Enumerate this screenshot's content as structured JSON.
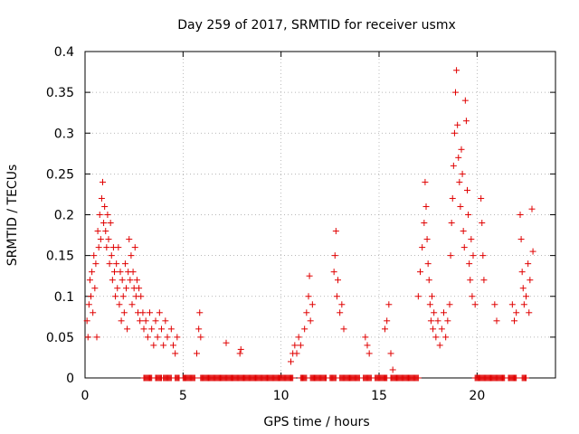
{
  "chart_data": {
    "type": "scatter",
    "title": "Day 259 of 2017, SRMTID for receiver usmx",
    "xlabel": "GPS time / hours",
    "ylabel": "SRMTID / TECUs",
    "xlim": [
      0,
      24
    ],
    "ylim": [
      0,
      0.4
    ],
    "xticks": [
      0,
      5,
      10,
      15,
      20
    ],
    "yticks": [
      0,
      0.05,
      0.1,
      0.15,
      0.2,
      0.25,
      0.3,
      0.35,
      0.4
    ],
    "xtick_labels": [
      "0",
      "5",
      "10",
      "15",
      "20"
    ],
    "ytick_labels": [
      "0",
      "0.05",
      "0.1",
      "0.15",
      "0.2",
      "0.25",
      "0.3",
      "0.35",
      "0.4"
    ],
    "grid": true,
    "marker": "+",
    "color": "#e00000",
    "series": [
      {
        "name": "SRMTID",
        "points": [
          [
            0.1,
            0.07
          ],
          [
            0.15,
            0.05
          ],
          [
            0.2,
            0.09
          ],
          [
            0.25,
            0.12
          ],
          [
            0.3,
            0.1
          ],
          [
            0.35,
            0.13
          ],
          [
            0.4,
            0.08
          ],
          [
            0.45,
            0.15
          ],
          [
            0.5,
            0.11
          ],
          [
            0.55,
            0.14
          ],
          [
            0.6,
            0.05
          ],
          [
            0.65,
            0.18
          ],
          [
            0.7,
            0.16
          ],
          [
            0.75,
            0.2
          ],
          [
            0.8,
            0.17
          ],
          [
            0.85,
            0.22
          ],
          [
            0.9,
            0.24
          ],
          [
            0.95,
            0.19
          ],
          [
            1.0,
            0.21
          ],
          [
            1.05,
            0.18
          ],
          [
            1.1,
            0.16
          ],
          [
            1.15,
            0.2
          ],
          [
            1.2,
            0.17
          ],
          [
            1.25,
            0.14
          ],
          [
            1.3,
            0.19
          ],
          [
            1.35,
            0.15
          ],
          [
            1.4,
            0.12
          ],
          [
            1.45,
            0.16
          ],
          [
            1.5,
            0.13
          ],
          [
            1.55,
            0.1
          ],
          [
            1.6,
            0.14
          ],
          [
            1.65,
            0.11
          ],
          [
            1.7,
            0.16
          ],
          [
            1.75,
            0.09
          ],
          [
            1.8,
            0.13
          ],
          [
            1.85,
            0.07
          ],
          [
            1.9,
            0.12
          ],
          [
            1.95,
            0.1
          ],
          [
            2.0,
            0.08
          ],
          [
            2.05,
            0.14
          ],
          [
            2.1,
            0.11
          ],
          [
            2.15,
            0.06
          ],
          [
            2.2,
            0.13
          ],
          [
            2.25,
            0.17
          ],
          [
            2.3,
            0.12
          ],
          [
            2.35,
            0.15
          ],
          [
            2.4,
            0.09
          ],
          [
            2.45,
            0.13
          ],
          [
            2.5,
            0.11
          ],
          [
            2.55,
            0.16
          ],
          [
            2.6,
            0.1
          ],
          [
            2.65,
            0.12
          ],
          [
            2.7,
            0.08
          ],
          [
            2.75,
            0.11
          ],
          [
            2.8,
            0.07
          ],
          [
            2.85,
            0.1
          ],
          [
            2.95,
            0.08
          ],
          [
            3.0,
            0.06
          ],
          [
            3.1,
            0.07
          ],
          [
            3.2,
            0.05
          ],
          [
            3.3,
            0.08
          ],
          [
            3.4,
            0.06
          ],
          [
            3.5,
            0.04
          ],
          [
            3.6,
            0.07
          ],
          [
            3.7,
            0.05
          ],
          [
            3.8,
            0.08
          ],
          [
            3.9,
            0.06
          ],
          [
            4.0,
            0.04
          ],
          [
            4.1,
            0.07
          ],
          [
            4.2,
            0.05
          ],
          [
            4.4,
            0.06
          ],
          [
            4.5,
            0.04
          ],
          [
            4.6,
            0.03
          ],
          [
            4.7,
            0.05
          ],
          [
            5.7,
            0.03
          ],
          [
            5.8,
            0.06
          ],
          [
            5.85,
            0.08
          ],
          [
            5.9,
            0.05
          ],
          [
            7.2,
            0.043
          ],
          [
            7.9,
            0.03
          ],
          [
            7.95,
            0.035
          ],
          [
            10.5,
            0.02
          ],
          [
            10.6,
            0.03
          ],
          [
            10.7,
            0.04
          ],
          [
            10.8,
            0.03
          ],
          [
            10.9,
            0.05
          ],
          [
            11.0,
            0.04
          ],
          [
            11.2,
            0.06
          ],
          [
            11.3,
            0.08
          ],
          [
            11.4,
            0.1
          ],
          [
            11.45,
            0.125
          ],
          [
            11.5,
            0.07
          ],
          [
            11.6,
            0.09
          ],
          [
            12.7,
            0.13
          ],
          [
            12.75,
            0.15
          ],
          [
            12.8,
            0.18
          ],
          [
            12.85,
            0.1
          ],
          [
            12.9,
            0.12
          ],
          [
            13.0,
            0.08
          ],
          [
            13.1,
            0.09
          ],
          [
            13.2,
            0.06
          ],
          [
            14.3,
            0.05
          ],
          [
            14.4,
            0.04
          ],
          [
            14.5,
            0.03
          ],
          [
            15.3,
            0.06
          ],
          [
            15.4,
            0.07
          ],
          [
            15.5,
            0.09
          ],
          [
            15.6,
            0.03
          ],
          [
            15.7,
            0.01
          ],
          [
            17.0,
            0.1
          ],
          [
            17.1,
            0.13
          ],
          [
            17.2,
            0.16
          ],
          [
            17.3,
            0.19
          ],
          [
            17.35,
            0.24
          ],
          [
            17.4,
            0.21
          ],
          [
            17.45,
            0.17
          ],
          [
            17.5,
            0.14
          ],
          [
            17.55,
            0.12
          ],
          [
            17.6,
            0.09
          ],
          [
            17.65,
            0.07
          ],
          [
            17.7,
            0.1
          ],
          [
            17.75,
            0.06
          ],
          [
            17.8,
            0.08
          ],
          [
            17.9,
            0.05
          ],
          [
            18.0,
            0.07
          ],
          [
            18.1,
            0.04
          ],
          [
            18.2,
            0.06
          ],
          [
            18.3,
            0.08
          ],
          [
            18.4,
            0.05
          ],
          [
            18.5,
            0.07
          ],
          [
            18.6,
            0.09
          ],
          [
            18.65,
            0.15
          ],
          [
            18.7,
            0.19
          ],
          [
            18.75,
            0.22
          ],
          [
            18.8,
            0.26
          ],
          [
            18.85,
            0.3
          ],
          [
            18.9,
            0.35
          ],
          [
            18.95,
            0.377
          ],
          [
            19.0,
            0.31
          ],
          [
            19.05,
            0.27
          ],
          [
            19.1,
            0.24
          ],
          [
            19.15,
            0.21
          ],
          [
            19.2,
            0.28
          ],
          [
            19.25,
            0.25
          ],
          [
            19.3,
            0.18
          ],
          [
            19.35,
            0.16
          ],
          [
            19.4,
            0.34
          ],
          [
            19.45,
            0.315
          ],
          [
            19.5,
            0.23
          ],
          [
            19.55,
            0.2
          ],
          [
            19.6,
            0.14
          ],
          [
            19.65,
            0.12
          ],
          [
            19.7,
            0.17
          ],
          [
            19.75,
            0.1
          ],
          [
            19.8,
            0.15
          ],
          [
            19.9,
            0.09
          ],
          [
            20.2,
            0.22
          ],
          [
            20.25,
            0.19
          ],
          [
            20.3,
            0.15
          ],
          [
            20.35,
            0.12
          ],
          [
            20.9,
            0.09
          ],
          [
            21.0,
            0.07
          ],
          [
            21.8,
            0.09
          ],
          [
            21.9,
            0.07
          ],
          [
            22.0,
            0.08
          ],
          [
            22.2,
            0.2
          ],
          [
            22.25,
            0.17
          ],
          [
            22.3,
            0.13
          ],
          [
            22.35,
            0.11
          ],
          [
            22.4,
            0.09
          ],
          [
            22.5,
            0.1
          ],
          [
            22.6,
            0.14
          ],
          [
            22.65,
            0.08
          ],
          [
            22.7,
            0.12
          ],
          [
            22.8,
            0.207
          ],
          [
            22.85,
            0.155
          ]
        ],
        "zero_intervals": [
          [
            3.0,
            3.4
          ],
          [
            3.6,
            3.9
          ],
          [
            4.0,
            4.4
          ],
          [
            4.6,
            4.8
          ],
          [
            5.0,
            5.6
          ],
          [
            5.9,
            10.6
          ],
          [
            11.0,
            11.3
          ],
          [
            11.5,
            12.3
          ],
          [
            12.5,
            12.8
          ],
          [
            13.0,
            14.0
          ],
          [
            14.2,
            14.6
          ],
          [
            14.8,
            15.4
          ],
          [
            15.6,
            17.0
          ],
          [
            19.9,
            21.4
          ],
          [
            21.6,
            22.0
          ],
          [
            22.3,
            22.5
          ]
        ]
      }
    ]
  }
}
